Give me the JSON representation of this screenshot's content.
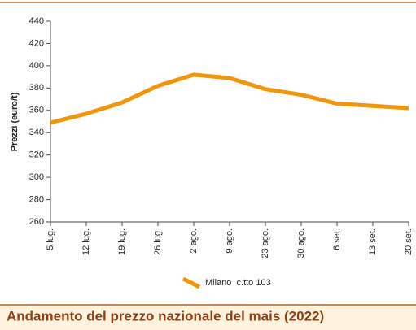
{
  "chart_data": {
    "type": "line",
    "title": "Andamento del prezzo nazionale del mais (2022)",
    "y_label": "Prezzi (euro/t)",
    "categories": [
      "5 lug.",
      "12 lug.",
      "19 lug.",
      "26 lug.",
      "2 ago.",
      "9 ago.",
      "23 ago.",
      "30 ago.",
      "6 set.",
      "13 set.",
      "20 set."
    ],
    "series": [
      {
        "name": "Milano  c.tto 103",
        "color": "#f0960c",
        "values": [
          349,
          357,
          367,
          382,
          392,
          389,
          379,
          374,
          366,
          364,
          362
        ]
      }
    ],
    "ylim": [
      260,
      440
    ],
    "yticks": [
      260,
      280,
      300,
      320,
      340,
      360,
      380,
      400,
      420,
      440
    ],
    "grid": false
  }
}
